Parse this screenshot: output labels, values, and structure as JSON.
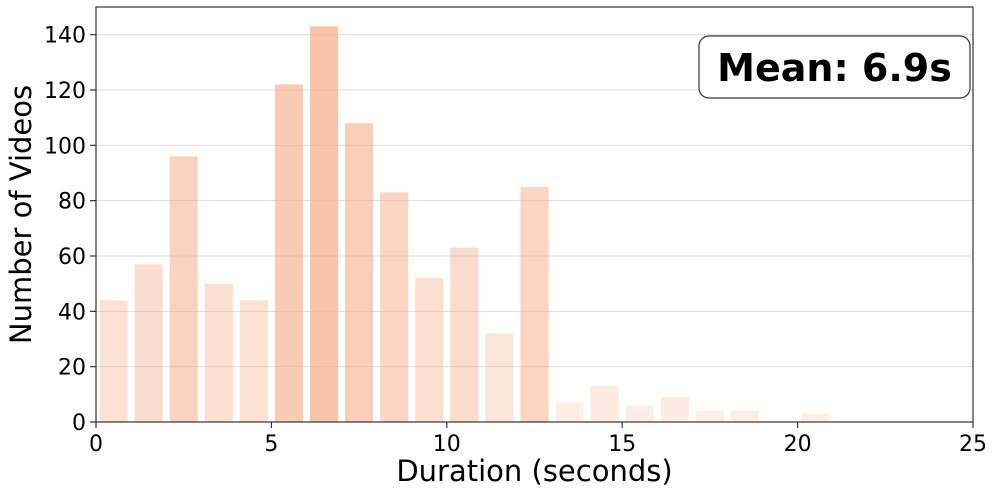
{
  "chart_data": {
    "type": "bar",
    "title": "",
    "xlabel": "Duration (seconds)",
    "ylabel": "Number of Videos",
    "xlim": [
      0,
      25
    ],
    "ylim": [
      0,
      150
    ],
    "xticks": [
      0,
      5,
      10,
      15,
      20,
      25
    ],
    "yticks": [
      0,
      20,
      40,
      60,
      80,
      100,
      120,
      140
    ],
    "grid": "horizontal",
    "bar_width": 0.8,
    "bar_color": "#f4a57c",
    "x": [
      0.5,
      1.5,
      2.5,
      3.5,
      4.5,
      5.5,
      6.5,
      7.5,
      8.5,
      9.5,
      10.5,
      11.5,
      12.5,
      13.5,
      14.5,
      15.5,
      16.5,
      17.5,
      18.5,
      19.5,
      20.5,
      21.5,
      22.5,
      23.5,
      24.5
    ],
    "values": [
      44,
      57,
      96,
      50,
      44,
      122,
      143,
      108,
      83,
      52,
      63,
      32,
      85,
      7,
      13,
      6,
      9,
      4,
      4,
      0,
      3,
      0,
      0,
      0,
      0
    ],
    "annotation": {
      "text": "Mean: 6.9s",
      "placement": "top-right"
    }
  }
}
